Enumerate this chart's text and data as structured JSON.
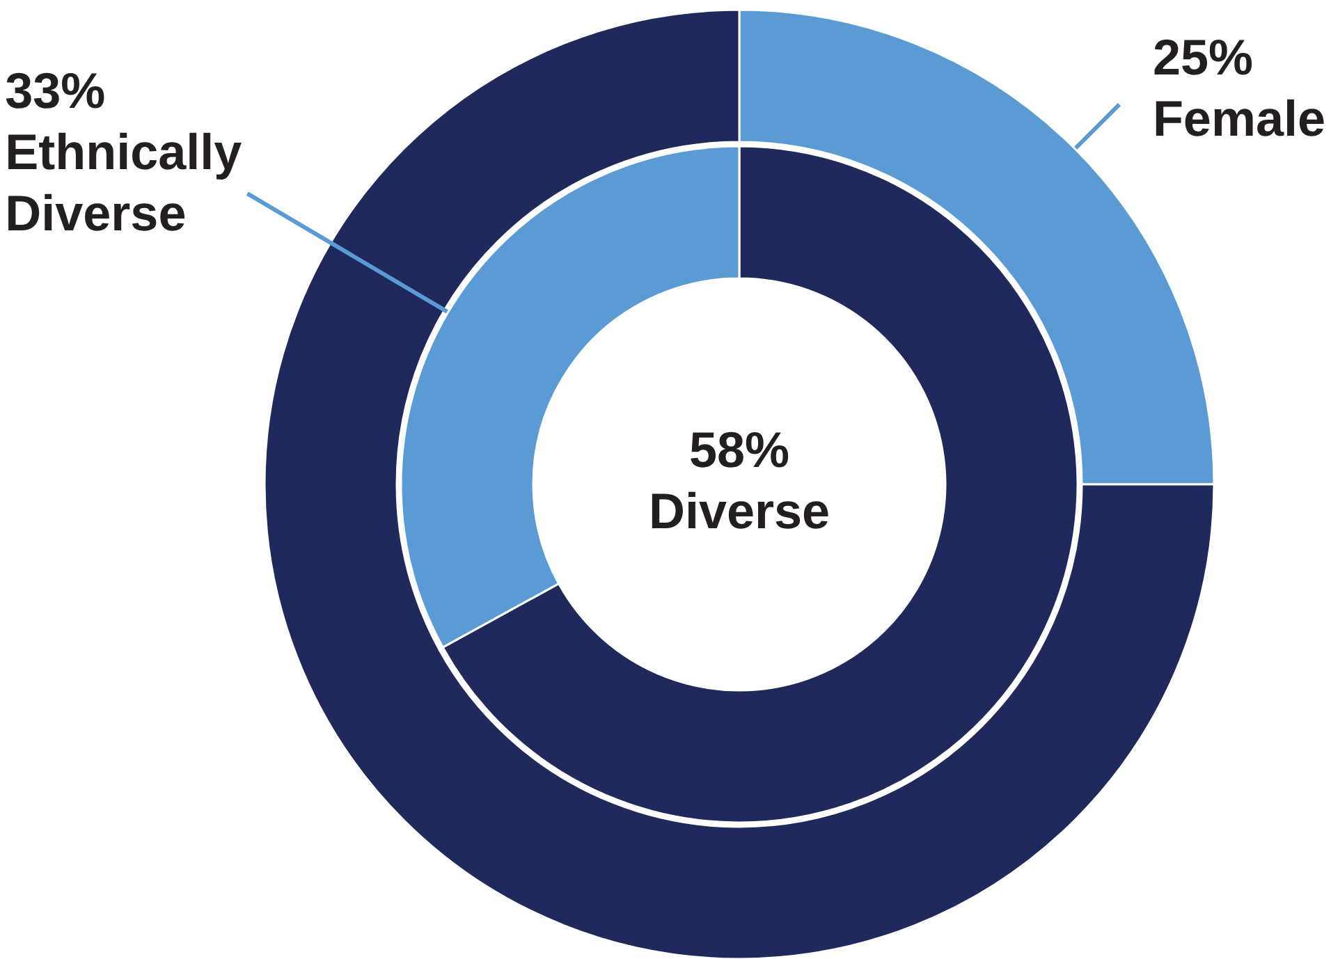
{
  "chart_data": [
    {
      "type": "donut",
      "categories": [
        "Female",
        null
      ],
      "values": [
        25,
        75
      ],
      "value_labels": [
        "25%",
        null
      ],
      "colors": [
        "#5b9bd5",
        "#1f295c"
      ]
    },
    {
      "type": "donut",
      "categories": [
        null,
        "Ethnically Diverse"
      ],
      "values": [
        67,
        33
      ],
      "value_labels": [
        null,
        "33%"
      ],
      "colors": [
        "#1f295c",
        "#5b9bd5"
      ],
      "annotations": [
        "58% Diverse"
      ]
    }
  ]
}
